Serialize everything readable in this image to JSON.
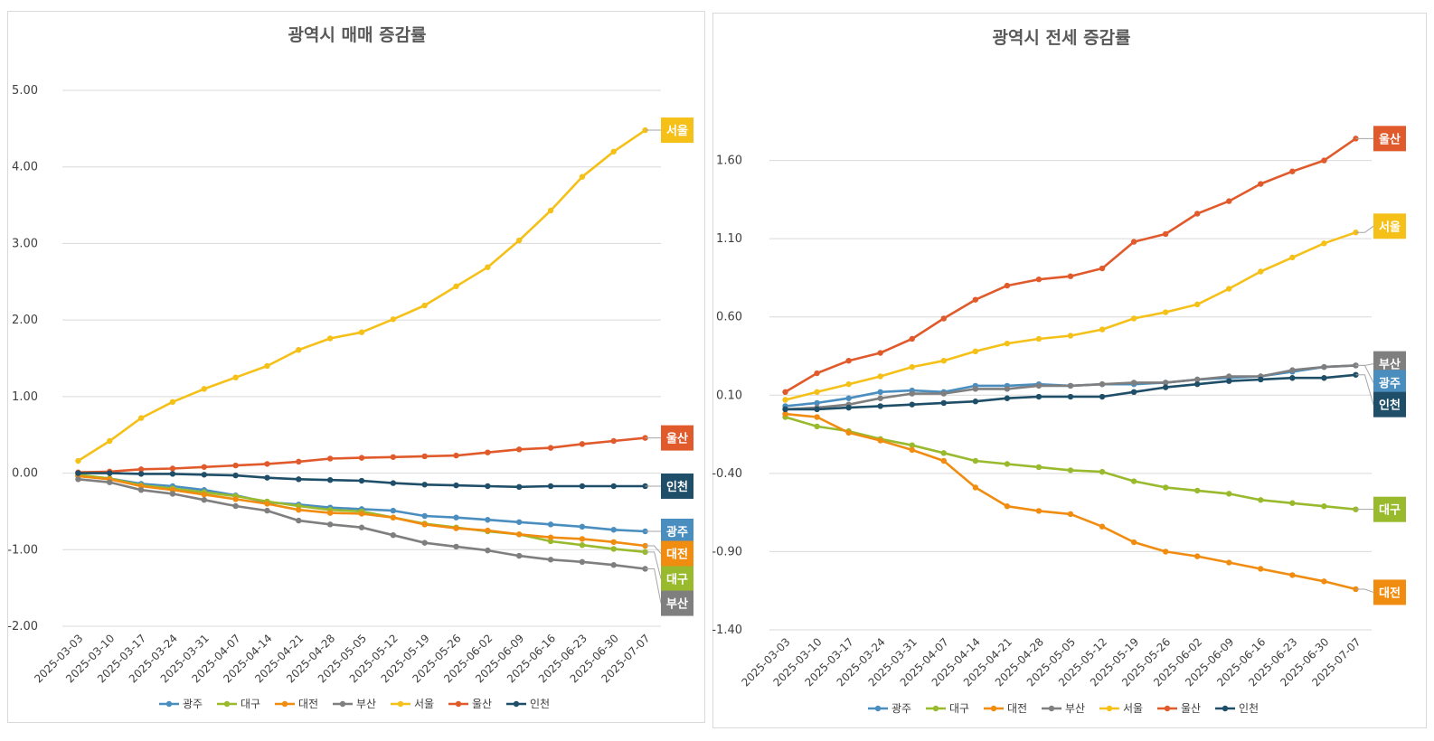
{
  "chart_data": [
    {
      "type": "line",
      "title": "광역시 매매 증감률",
      "xlabel": "",
      "ylabel": "",
      "ylim": [
        -2.0,
        5.0
      ],
      "yticks": [
        "5.00",
        "4.00",
        "3.00",
        "2.00",
        "1.00",
        "0.00",
        "-1.00",
        "-2.00"
      ],
      "ytick_values": [
        5,
        4,
        3,
        2,
        1,
        0,
        -1,
        -2
      ],
      "grid": true,
      "legend_position": "bottom",
      "categories": [
        "2025-03-03",
        "2025-03-10",
        "2025-03-17",
        "2025-03-24",
        "2025-03-31",
        "2025-04-07",
        "2025-04-14",
        "2025-04-21",
        "2025-04-28",
        "2025-05-05",
        "2025-05-12",
        "2025-05-19",
        "2025-05-26",
        "2025-06-02",
        "2025-06-09",
        "2025-06-16",
        "2025-06-23",
        "2025-06-30",
        "2025-07-07"
      ],
      "series": [
        {
          "name": "광주",
          "color": "#4a8ebf",
          "values": [
            -0.03,
            -0.07,
            -0.14,
            -0.17,
            -0.22,
            -0.29,
            -0.38,
            -0.41,
            -0.45,
            -0.47,
            -0.49,
            -0.56,
            -0.58,
            -0.61,
            -0.64,
            -0.67,
            -0.7,
            -0.74,
            -0.76
          ]
        },
        {
          "name": "대구",
          "color": "#9aba2e",
          "values": [
            -0.02,
            -0.07,
            -0.16,
            -0.2,
            -0.25,
            -0.3,
            -0.37,
            -0.43,
            -0.48,
            -0.5,
            -0.58,
            -0.66,
            -0.71,
            -0.76,
            -0.8,
            -0.89,
            -0.94,
            -0.99,
            -1.03
          ]
        },
        {
          "name": "대전",
          "color": "#f08c10",
          "values": [
            -0.04,
            -0.08,
            -0.17,
            -0.22,
            -0.28,
            -0.34,
            -0.4,
            -0.48,
            -0.52,
            -0.53,
            -0.58,
            -0.67,
            -0.72,
            -0.75,
            -0.8,
            -0.84,
            -0.86,
            -0.9,
            -0.95
          ]
        },
        {
          "name": "부산",
          "color": "#7f7f7f",
          "values": [
            -0.08,
            -0.12,
            -0.22,
            -0.27,
            -0.35,
            -0.43,
            -0.49,
            -0.62,
            -0.67,
            -0.71,
            -0.81,
            -0.91,
            -0.96,
            -1.01,
            -1.08,
            -1.13,
            -1.16,
            -1.2,
            -1.25
          ]
        },
        {
          "name": "서울",
          "color": "#f5c018",
          "values": [
            0.16,
            0.42,
            0.72,
            0.93,
            1.1,
            1.25,
            1.4,
            1.61,
            1.76,
            1.84,
            2.01,
            2.19,
            2.44,
            2.69,
            3.04,
            3.43,
            3.87,
            4.2,
            4.48
          ]
        },
        {
          "name": "울산",
          "color": "#e05a2b",
          "values": [
            0.01,
            0.02,
            0.05,
            0.06,
            0.08,
            0.1,
            0.12,
            0.15,
            0.19,
            0.2,
            0.21,
            0.22,
            0.23,
            0.27,
            0.31,
            0.33,
            0.38,
            0.42,
            0.46
          ]
        },
        {
          "name": "인천",
          "color": "#1f4e68",
          "values": [
            0.0,
            0.0,
            -0.01,
            -0.01,
            -0.02,
            -0.03,
            -0.06,
            -0.08,
            -0.09,
            -0.1,
            -0.13,
            -0.15,
            -0.16,
            -0.17,
            -0.18,
            -0.17,
            -0.17,
            -0.17,
            -0.17
          ]
        }
      ],
      "end_labels": [
        {
          "series": "서울",
          "text": "서울",
          "value": 4.48
        },
        {
          "series": "울산",
          "text": "울산",
          "value": 0.46
        },
        {
          "series": "인천",
          "text": "인천",
          "value": -0.17
        },
        {
          "series": "광주",
          "text": "광주",
          "value": -0.76
        },
        {
          "series": "대전",
          "text": "대전",
          "value": -1.05
        },
        {
          "series": "대구",
          "text": "대구",
          "value": -1.38
        },
        {
          "series": "부산",
          "text": "부산",
          "value": -1.7
        }
      ]
    },
    {
      "type": "line",
      "title": "광역시 전세 증감률",
      "xlabel": "",
      "ylabel": "",
      "ylim": [
        -1.4,
        2.1
      ],
      "yticks": [
        "1.60",
        "1.10",
        "0.60",
        "0.10",
        "-0.40",
        "-0.90",
        "-1.40"
      ],
      "ytick_values": [
        1.6,
        1.1,
        0.6,
        0.1,
        -0.4,
        -0.9,
        -1.4
      ],
      "grid": true,
      "legend_position": "bottom",
      "categories": [
        "2025-03-03",
        "2025-03-10",
        "2025-03-17",
        "2025-03-24",
        "2025-03-31",
        "2025-04-07",
        "2025-04-14",
        "2025-04-21",
        "2025-04-28",
        "2025-05-05",
        "2025-05-12",
        "2025-05-19",
        "2025-05-26",
        "2025-06-02",
        "2025-06-09",
        "2025-06-16",
        "2025-06-23",
        "2025-06-30",
        "2025-07-07"
      ],
      "series": [
        {
          "name": "광주",
          "color": "#4a8ebf",
          "values": [
            0.03,
            0.05,
            0.08,
            0.12,
            0.13,
            0.12,
            0.16,
            0.16,
            0.17,
            0.16,
            0.17,
            0.17,
            0.18,
            0.2,
            0.21,
            0.22,
            0.25,
            0.28,
            0.29
          ]
        },
        {
          "name": "대구",
          "color": "#9aba2e",
          "values": [
            -0.04,
            -0.1,
            -0.13,
            -0.18,
            -0.22,
            -0.27,
            -0.32,
            -0.34,
            -0.36,
            -0.38,
            -0.39,
            -0.45,
            -0.49,
            -0.51,
            -0.53,
            -0.57,
            -0.59,
            -0.61,
            -0.63
          ]
        },
        {
          "name": "대전",
          "color": "#f08c10",
          "values": [
            -0.02,
            -0.04,
            -0.14,
            -0.19,
            -0.25,
            -0.32,
            -0.49,
            -0.61,
            -0.64,
            -0.66,
            -0.74,
            -0.84,
            -0.9,
            -0.93,
            -0.97,
            -1.01,
            -1.05,
            -1.09,
            -1.14
          ]
        },
        {
          "name": "부산",
          "color": "#7f7f7f",
          "values": [
            0.01,
            0.02,
            0.04,
            0.08,
            0.11,
            0.11,
            0.14,
            0.14,
            0.16,
            0.16,
            0.17,
            0.18,
            0.18,
            0.2,
            0.22,
            0.22,
            0.26,
            0.28,
            0.29
          ]
        },
        {
          "name": "서울",
          "color": "#f5c018",
          "values": [
            0.07,
            0.12,
            0.17,
            0.22,
            0.28,
            0.32,
            0.38,
            0.43,
            0.46,
            0.48,
            0.52,
            0.59,
            0.63,
            0.68,
            0.78,
            0.89,
            0.98,
            1.07,
            1.14
          ]
        },
        {
          "name": "울산",
          "color": "#e05a2b",
          "values": [
            0.12,
            0.24,
            0.32,
            0.37,
            0.46,
            0.59,
            0.71,
            0.8,
            0.84,
            0.86,
            0.91,
            1.08,
            1.13,
            1.26,
            1.34,
            1.45,
            1.53,
            1.6,
            1.74
          ]
        },
        {
          "name": "인천",
          "color": "#1f4e68",
          "values": [
            0.01,
            0.01,
            0.02,
            0.03,
            0.04,
            0.05,
            0.06,
            0.08,
            0.09,
            0.09,
            0.09,
            0.12,
            0.15,
            0.17,
            0.19,
            0.2,
            0.21,
            0.21,
            0.23
          ]
        }
      ],
      "end_labels": [
        {
          "series": "울산",
          "text": "울산",
          "value": 1.74
        },
        {
          "series": "서울",
          "text": "서울",
          "value": 1.18
        },
        {
          "series": "부산",
          "text": "부산",
          "value": 0.3
        },
        {
          "series": "광주",
          "text": "광주",
          "value": 0.18
        },
        {
          "series": "인천",
          "text": "인천",
          "value": 0.04
        },
        {
          "series": "대구",
          "text": "대구",
          "value": -0.63
        },
        {
          "series": "대전",
          "text": "대전",
          "value": -1.16
        }
      ]
    }
  ]
}
